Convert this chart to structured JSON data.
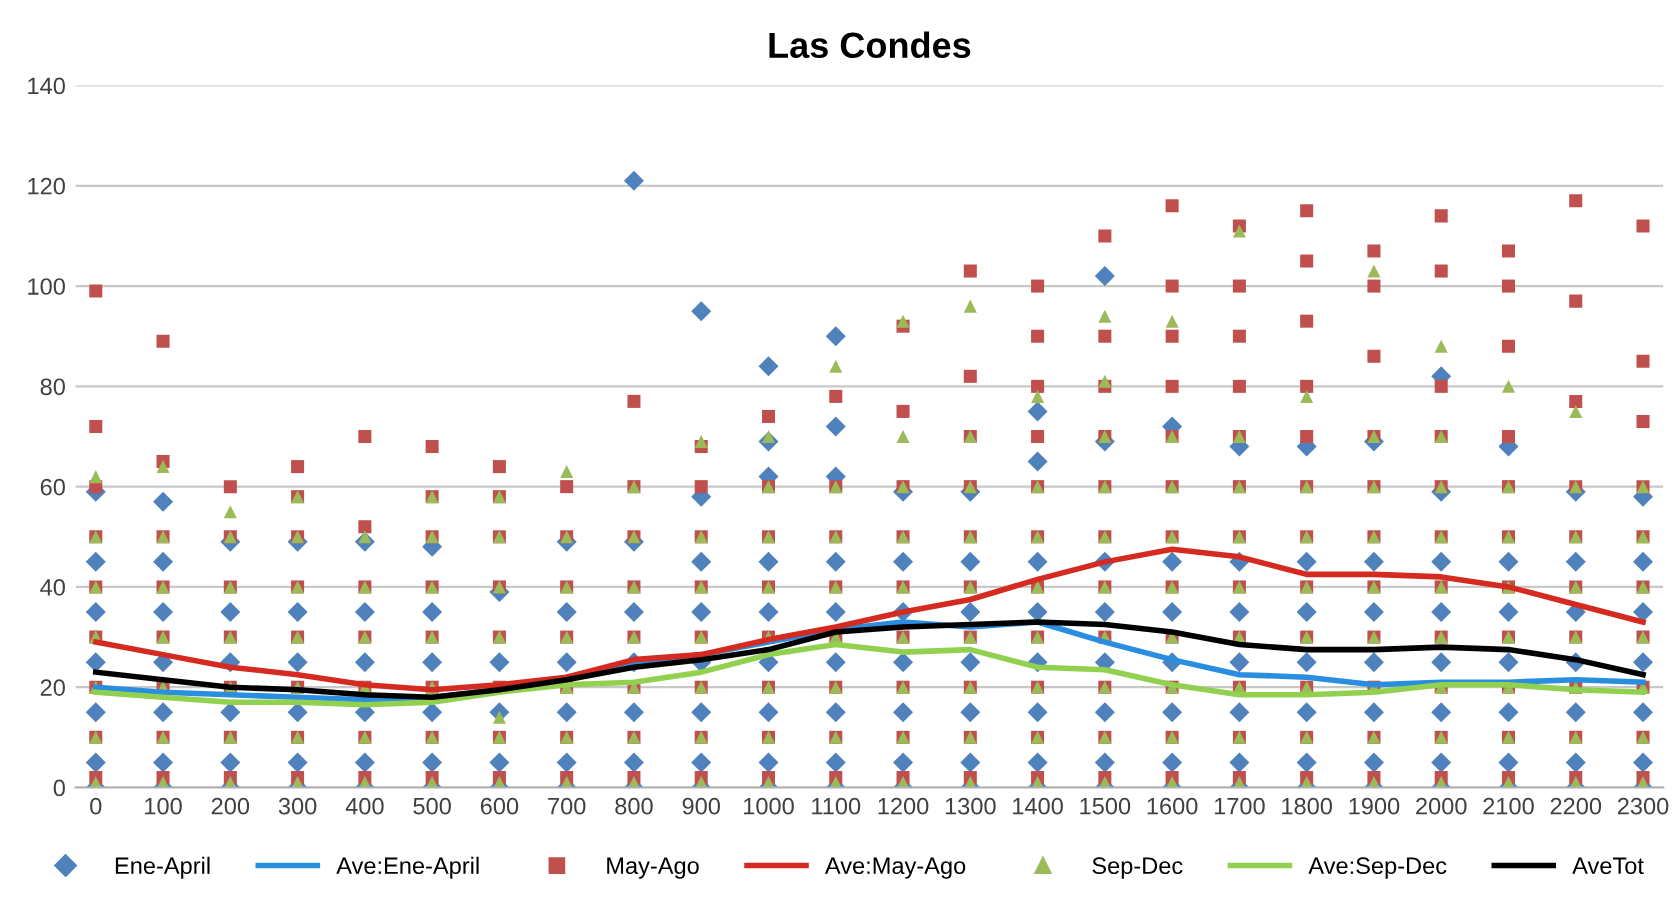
{
  "chart_data": {
    "type": "scatter",
    "title": "Las Condes",
    "x": [
      0,
      100,
      200,
      300,
      400,
      500,
      600,
      700,
      800,
      900,
      1000,
      1100,
      1200,
      1300,
      1400,
      1500,
      1600,
      1700,
      1800,
      1900,
      2000,
      2100,
      2200,
      2300
    ],
    "xlim": [
      -30,
      2330
    ],
    "xticks": [
      0,
      100,
      200,
      300,
      400,
      500,
      600,
      700,
      800,
      900,
      1000,
      1100,
      1200,
      1300,
      1400,
      1500,
      1600,
      1700,
      1800,
      1900,
      2000,
      2100,
      2200,
      2300
    ],
    "ylim": [
      0,
      140
    ],
    "yticks": [
      0,
      20,
      40,
      60,
      80,
      100,
      120,
      140
    ],
    "grid": "y",
    "legend": "bottom",
    "series": [
      {
        "name": "Ene-April",
        "type": "scatter",
        "marker": "diamond",
        "color": "#4f81bd",
        "x": [
          0,
          0,
          0,
          0,
          0,
          0,
          0,
          100,
          100,
          100,
          100,
          100,
          100,
          100,
          200,
          200,
          200,
          200,
          200,
          200,
          300,
          300,
          300,
          300,
          300,
          300,
          400,
          400,
          400,
          400,
          400,
          400,
          500,
          500,
          500,
          500,
          500,
          500,
          600,
          600,
          600,
          600,
          600,
          700,
          700,
          700,
          700,
          700,
          700,
          800,
          800,
          800,
          800,
          800,
          800,
          800,
          900,
          900,
          900,
          900,
          900,
          900,
          900,
          900,
          1000,
          1000,
          1000,
          1000,
          1000,
          1000,
          1000,
          1000,
          1000,
          1100,
          1100,
          1100,
          1100,
          1100,
          1100,
          1100,
          1100,
          1100,
          1200,
          1200,
          1200,
          1200,
          1200,
          1200,
          1200,
          1300,
          1300,
          1300,
          1300,
          1300,
          1300,
          1300,
          1400,
          1400,
          1400,
          1400,
          1400,
          1400,
          1400,
          1400,
          1500,
          1500,
          1500,
          1500,
          1500,
          1500,
          1500,
          1500,
          1600,
          1600,
          1600,
          1600,
          1600,
          1600,
          1600,
          1700,
          1700,
          1700,
          1700,
          1700,
          1700,
          1700,
          1800,
          1800,
          1800,
          1800,
          1800,
          1800,
          1800,
          1900,
          1900,
          1900,
          1900,
          1900,
          1900,
          1900,
          2000,
          2000,
          2000,
          2000,
          2000,
          2000,
          2000,
          2000,
          2100,
          2100,
          2100,
          2100,
          2100,
          2100,
          2100,
          2200,
          2200,
          2200,
          2200,
          2200,
          2200,
          2200,
          2300,
          2300,
          2300,
          2300,
          2300,
          2300,
          2300
        ],
        "values": [
          0,
          5,
          15,
          25,
          35,
          45,
          59,
          0,
          5,
          15,
          25,
          35,
          45,
          57,
          0,
          5,
          15,
          25,
          35,
          49,
          0,
          5,
          15,
          25,
          35,
          49,
          0,
          5,
          15,
          25,
          35,
          49,
          0,
          5,
          15,
          25,
          35,
          48,
          0,
          5,
          15,
          25,
          39,
          0,
          5,
          15,
          25,
          35,
          49,
          0,
          5,
          15,
          25,
          35,
          49,
          121,
          0,
          5,
          15,
          25,
          35,
          45,
          58,
          95,
          0,
          5,
          15,
          25,
          35,
          45,
          62,
          69,
          84,
          0,
          5,
          15,
          25,
          35,
          45,
          62,
          72,
          90,
          0,
          5,
          15,
          25,
          35,
          45,
          59,
          0,
          5,
          15,
          25,
          35,
          45,
          59,
          0,
          5,
          15,
          25,
          35,
          45,
          65,
          75,
          0,
          5,
          15,
          25,
          35,
          45,
          69,
          102,
          0,
          5,
          15,
          25,
          35,
          45,
          72,
          0,
          5,
          15,
          25,
          35,
          45,
          68,
          0,
          5,
          15,
          25,
          35,
          45,
          68,
          0,
          5,
          15,
          25,
          35,
          45,
          69,
          0,
          5,
          15,
          25,
          35,
          45,
          59,
          82,
          0,
          5,
          15,
          25,
          35,
          45,
          68,
          0,
          5,
          15,
          25,
          35,
          45,
          59,
          0,
          5,
          15,
          25,
          35,
          45,
          58
        ]
      },
      {
        "name": "Ave:Ene-April",
        "type": "line",
        "color": "#2a8ee0",
        "values": [
          20,
          19,
          18.5,
          18,
          17.5,
          18,
          19.5,
          22,
          25,
          26.5,
          29,
          31.5,
          33,
          32,
          33,
          29,
          25.5,
          22.5,
          22,
          20.5,
          21,
          21,
          21.5,
          21
        ]
      },
      {
        "name": "May-Ago",
        "type": "scatter",
        "marker": "square",
        "color": "#c0504d",
        "x": [
          0,
          0,
          0,
          0,
          0,
          0,
          0,
          0,
          0,
          100,
          100,
          100,
          100,
          100,
          100,
          100,
          100,
          200,
          200,
          200,
          200,
          200,
          200,
          200,
          300,
          300,
          300,
          300,
          300,
          300,
          300,
          300,
          400,
          400,
          400,
          400,
          400,
          400,
          400,
          500,
          500,
          500,
          500,
          500,
          500,
          500,
          500,
          600,
          600,
          600,
          600,
          600,
          600,
          600,
          600,
          700,
          700,
          700,
          700,
          700,
          700,
          700,
          800,
          800,
          800,
          800,
          800,
          800,
          800,
          800,
          900,
          900,
          900,
          900,
          900,
          900,
          900,
          900,
          1000,
          1000,
          1000,
          1000,
          1000,
          1000,
          1000,
          1000,
          1100,
          1100,
          1100,
          1100,
          1100,
          1100,
          1100,
          1100,
          1200,
          1200,
          1200,
          1200,
          1200,
          1200,
          1200,
          1200,
          1200,
          1300,
          1300,
          1300,
          1300,
          1300,
          1300,
          1300,
          1300,
          1300,
          1300,
          1400,
          1400,
          1400,
          1400,
          1400,
          1400,
          1400,
          1400,
          1400,
          1400,
          1400,
          1500,
          1500,
          1500,
          1500,
          1500,
          1500,
          1500,
          1500,
          1500,
          1500,
          1500,
          1600,
          1600,
          1600,
          1600,
          1600,
          1600,
          1600,
          1600,
          1600,
          1600,
          1600,
          1600,
          1700,
          1700,
          1700,
          1700,
          1700,
          1700,
          1700,
          1700,
          1700,
          1700,
          1700,
          1700,
          1800,
          1800,
          1800,
          1800,
          1800,
          1800,
          1800,
          1800,
          1800,
          1800,
          1800,
          1800,
          1900,
          1900,
          1900,
          1900,
          1900,
          1900,
          1900,
          1900,
          1900,
          1900,
          1900,
          2000,
          2000,
          2000,
          2000,
          2000,
          2000,
          2000,
          2000,
          2000,
          2000,
          2000,
          2100,
          2100,
          2100,
          2100,
          2100,
          2100,
          2100,
          2100,
          2100,
          2100,
          2100,
          2200,
          2200,
          2200,
          2200,
          2200,
          2200,
          2200,
          2200,
          2200,
          2200,
          2300,
          2300,
          2300,
          2300,
          2300,
          2300,
          2300,
          2300,
          2300,
          2300
        ],
        "values": [
          2,
          10,
          20,
          30,
          40,
          50,
          60,
          72,
          99,
          2,
          10,
          20,
          30,
          40,
          50,
          65,
          89,
          2,
          10,
          20,
          30,
          40,
          50,
          60,
          2,
          10,
          20,
          30,
          40,
          50,
          58,
          64,
          2,
          10,
          20,
          30,
          40,
          52,
          70,
          2,
          10,
          20,
          30,
          40,
          50,
          58,
          68,
          2,
          10,
          20,
          30,
          40,
          50,
          58,
          64,
          2,
          10,
          20,
          30,
          40,
          50,
          60,
          2,
          10,
          20,
          30,
          40,
          50,
          60,
          77,
          2,
          10,
          20,
          30,
          40,
          50,
          60,
          68,
          2,
          10,
          20,
          30,
          40,
          50,
          60,
          74,
          2,
          10,
          20,
          30,
          40,
          50,
          60,
          78,
          2,
          10,
          20,
          30,
          40,
          50,
          60,
          75,
          92,
          2,
          10,
          20,
          30,
          40,
          50,
          60,
          70,
          82,
          103,
          2,
          10,
          20,
          30,
          40,
          50,
          60,
          70,
          80,
          90,
          100,
          2,
          10,
          20,
          30,
          40,
          50,
          60,
          70,
          80,
          90,
          110,
          2,
          10,
          20,
          30,
          40,
          50,
          60,
          70,
          80,
          90,
          100,
          116,
          2,
          10,
          20,
          30,
          40,
          50,
          60,
          70,
          80,
          90,
          100,
          112,
          2,
          10,
          20,
          30,
          40,
          50,
          60,
          70,
          80,
          93,
          105,
          115,
          2,
          10,
          20,
          30,
          40,
          50,
          60,
          70,
          86,
          100,
          107,
          2,
          10,
          20,
          30,
          40,
          50,
          60,
          70,
          80,
          103,
          114,
          2,
          10,
          20,
          30,
          40,
          50,
          60,
          70,
          88,
          100,
          107,
          2,
          10,
          20,
          30,
          40,
          50,
          60,
          77,
          97,
          117,
          2,
          10,
          20,
          30,
          40,
          50,
          60,
          73,
          85,
          112
        ]
      },
      {
        "name": "Ave:May-Ago",
        "type": "line",
        "color": "#d42a20",
        "values": [
          29,
          26.5,
          24,
          22.5,
          20.5,
          19.5,
          20.5,
          22,
          25.5,
          26.5,
          29.5,
          32,
          35,
          37.5,
          41.5,
          45,
          47.5,
          46,
          42.5,
          42.5,
          42,
          40,
          36.5,
          33
        ]
      },
      {
        "name": "Sep-Dec",
        "type": "scatter",
        "marker": "triangle",
        "color": "#9bbb59",
        "x": [
          0,
          0,
          0,
          0,
          0,
          0,
          0,
          100,
          100,
          100,
          100,
          100,
          100,
          100,
          200,
          200,
          200,
          200,
          200,
          200,
          200,
          300,
          300,
          300,
          300,
          300,
          300,
          300,
          400,
          400,
          400,
          400,
          400,
          400,
          500,
          500,
          500,
          500,
          500,
          500,
          500,
          600,
          600,
          600,
          600,
          600,
          600,
          600,
          700,
          700,
          700,
          700,
          700,
          700,
          700,
          800,
          800,
          800,
          800,
          800,
          800,
          800,
          900,
          900,
          900,
          900,
          900,
          900,
          900,
          1000,
          1000,
          1000,
          1000,
          1000,
          1000,
          1000,
          1000,
          1100,
          1100,
          1100,
          1100,
          1100,
          1100,
          1100,
          1100,
          1200,
          1200,
          1200,
          1200,
          1200,
          1200,
          1200,
          1200,
          1200,
          1300,
          1300,
          1300,
          1300,
          1300,
          1300,
          1300,
          1300,
          1300,
          1400,
          1400,
          1400,
          1400,
          1400,
          1400,
          1400,
          1400,
          1500,
          1500,
          1500,
          1500,
          1500,
          1500,
          1500,
          1500,
          1500,
          1500,
          1600,
          1600,
          1600,
          1600,
          1600,
          1600,
          1600,
          1600,
          1600,
          1700,
          1700,
          1700,
          1700,
          1700,
          1700,
          1700,
          1700,
          1700,
          1800,
          1800,
          1800,
          1800,
          1800,
          1800,
          1800,
          1800,
          1900,
          1900,
          1900,
          1900,
          1900,
          1900,
          1900,
          1900,
          1900,
          2000,
          2000,
          2000,
          2000,
          2000,
          2000,
          2000,
          2000,
          2000,
          2100,
          2100,
          2100,
          2100,
          2100,
          2100,
          2100,
          2100,
          2200,
          2200,
          2200,
          2200,
          2200,
          2200,
          2200,
          2200,
          2300,
          2300,
          2300,
          2300,
          2300,
          2300,
          2300
        ],
        "values": [
          1,
          10,
          20,
          30,
          40,
          50,
          62,
          1,
          10,
          20,
          30,
          40,
          50,
          64,
          1,
          10,
          20,
          30,
          40,
          50,
          55,
          1,
          10,
          20,
          30,
          40,
          50,
          58,
          1,
          10,
          20,
          30,
          40,
          50,
          1,
          10,
          20,
          30,
          40,
          50,
          58,
          1,
          10,
          14,
          30,
          40,
          50,
          58,
          1,
          10,
          20,
          30,
          40,
          50,
          63,
          1,
          10,
          20,
          30,
          40,
          50,
          60,
          1,
          10,
          20,
          30,
          40,
          50,
          69,
          1,
          10,
          20,
          30,
          40,
          50,
          60,
          70,
          1,
          10,
          20,
          30,
          40,
          50,
          60,
          84,
          1,
          10,
          20,
          30,
          40,
          50,
          60,
          70,
          93,
          1,
          10,
          20,
          30,
          40,
          50,
          60,
          70,
          96,
          1,
          10,
          20,
          30,
          40,
          50,
          60,
          78,
          1,
          10,
          20,
          30,
          40,
          50,
          60,
          70,
          81,
          94,
          1,
          10,
          20,
          30,
          40,
          50,
          60,
          70,
          93,
          1,
          10,
          20,
          30,
          40,
          50,
          60,
          70,
          111,
          1,
          10,
          20,
          30,
          40,
          50,
          60,
          78,
          1,
          10,
          20,
          30,
          40,
          50,
          60,
          70,
          103,
          1,
          10,
          20,
          30,
          40,
          50,
          60,
          70,
          88,
          1,
          10,
          20,
          30,
          40,
          50,
          60,
          80,
          1,
          10,
          20,
          30,
          40,
          50,
          60,
          75,
          1,
          10,
          20,
          30,
          40,
          50,
          60
        ]
      },
      {
        "name": "Ave:Sep-Dec",
        "type": "line",
        "color": "#92d050",
        "values": [
          19,
          18,
          17,
          17,
          16.5,
          17,
          19,
          20.5,
          21,
          23,
          26.5,
          28.5,
          27,
          27.5,
          24,
          23.5,
          20.5,
          18.5,
          18.5,
          19,
          20.5,
          20.5,
          19.5,
          19
        ]
      },
      {
        "name": "AveTot",
        "type": "line",
        "color": "#000000",
        "values": [
          23,
          21.5,
          20,
          19.5,
          18.5,
          18,
          19.5,
          21.5,
          24,
          25.5,
          27.5,
          31,
          32,
          32.5,
          33,
          32.5,
          31,
          28.5,
          27.5,
          27.5,
          28,
          27.5,
          25.5,
          22.5
        ]
      }
    ]
  }
}
